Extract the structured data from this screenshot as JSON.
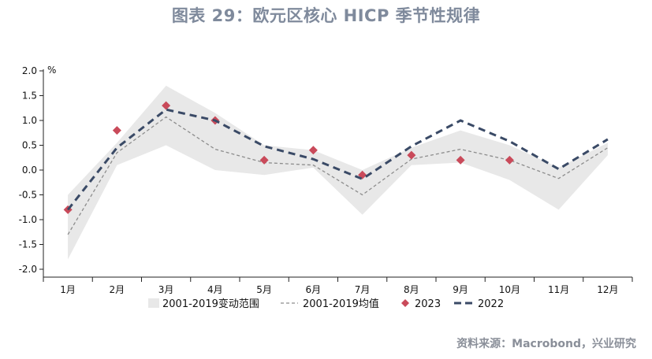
{
  "title": "图表 29：欧元区核心 HICP 季节性规律",
  "source": "资料来源：Macrobond，兴业研究",
  "chart_data": {
    "type": "line",
    "title": "图表 29：欧元区核心 HICP 季节性规律",
    "ylabel": "%",
    "xlabel": "",
    "ylim": [
      -2.0,
      2.0
    ],
    "yticks": [
      "2.0",
      "1.5",
      "1.0",
      "0.5",
      "0.0",
      "-0.5",
      "-1.0",
      "-1.5",
      "-2.0"
    ],
    "ytick_values": [
      2.0,
      1.5,
      1.0,
      0.5,
      0.0,
      -0.5,
      -1.0,
      -1.5,
      -2.0
    ],
    "categories": [
      "1月",
      "2月",
      "3月",
      "4月",
      "5月",
      "6月",
      "7月",
      "8月",
      "9月",
      "10月",
      "11月",
      "12月"
    ],
    "grid": false,
    "legend_position": "bottom",
    "range_band": {
      "name": "2001-2019变动范围",
      "upper": [
        -0.5,
        0.55,
        1.7,
        1.15,
        0.5,
        0.4,
        0.0,
        0.45,
        0.8,
        0.5,
        0.05,
        0.55
      ],
      "lower": [
        -1.8,
        0.1,
        0.5,
        0.0,
        -0.1,
        0.05,
        -0.9,
        0.1,
        0.15,
        -0.2,
        -0.8,
        0.3
      ],
      "color": "#e8e8e8"
    },
    "series": [
      {
        "name": "2001-2019均值",
        "style": "dotted",
        "color": "#8c8c8c",
        "values": [
          -1.3,
          0.35,
          1.07,
          0.42,
          0.15,
          0.1,
          -0.5,
          0.22,
          0.42,
          0.2,
          -0.17,
          0.45
        ]
      },
      {
        "name": "2023",
        "style": "marker",
        "color": "#c94a5a",
        "values": [
          -0.8,
          0.8,
          1.3,
          1.0,
          0.2,
          0.4,
          -0.1,
          0.3,
          0.2,
          0.2,
          null,
          null
        ]
      },
      {
        "name": "2022",
        "style": "dashed",
        "color": "#3a4a66",
        "values": [
          -0.8,
          0.45,
          1.22,
          1.0,
          0.48,
          0.22,
          -0.18,
          0.48,
          1.0,
          0.58,
          0.02,
          0.62
        ]
      }
    ]
  }
}
